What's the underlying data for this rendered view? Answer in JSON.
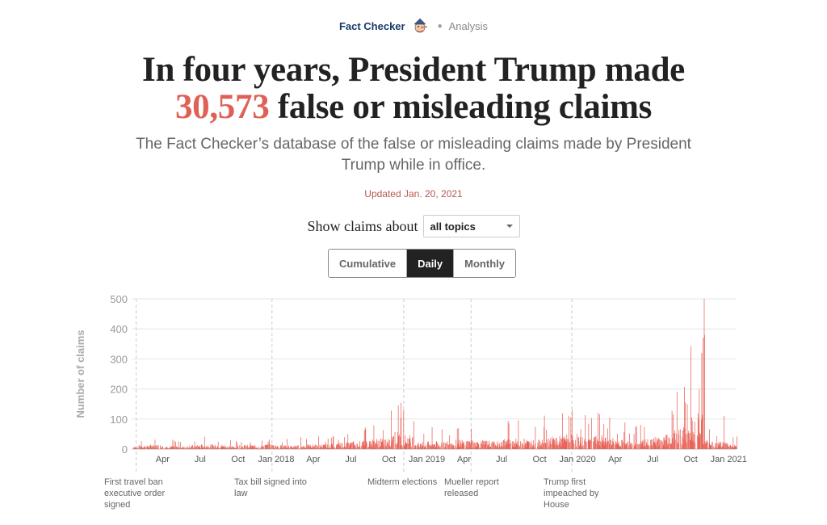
{
  "header": {
    "brand": "Fact Checker",
    "section": "Analysis"
  },
  "headline": {
    "line1": "In four years, President Trump made",
    "number": "30,573",
    "line2_rest": " false or misleading claims"
  },
  "dek": "The Fact Checker’s database of the false or misleading claims made by President Trump while in office.",
  "updated": "Updated Jan. 20, 2021",
  "filter": {
    "label": "Show claims about",
    "selected": "all topics"
  },
  "toggle": {
    "options": [
      "Cumulative",
      "Daily",
      "Monthly"
    ],
    "active": "Daily"
  },
  "colors": {
    "accent": "#e06055",
    "bar": "#e8645a",
    "headline": "#222222",
    "updated": "#b5594d"
  },
  "chart_data": {
    "type": "bar",
    "ylabel": "Number of claims",
    "ylim": [
      0,
      500
    ],
    "yticks": [
      0,
      100,
      200,
      300,
      400,
      500
    ],
    "x_start": "2017-01-20",
    "x_end": "2021-01-20",
    "xticks": [
      {
        "label": "Apr",
        "date": "2017-04-01"
      },
      {
        "label": "Jul",
        "date": "2017-07-01"
      },
      {
        "label": "Oct",
        "date": "2017-10-01"
      },
      {
        "label": "Jan 2018",
        "date": "2018-01-01"
      },
      {
        "label": "Apr",
        "date": "2018-04-01"
      },
      {
        "label": "Jul",
        "date": "2018-07-01"
      },
      {
        "label": "Oct",
        "date": "2018-10-01"
      },
      {
        "label": "Jan 2019",
        "date": "2019-01-01"
      },
      {
        "label": "Apr",
        "date": "2019-04-01"
      },
      {
        "label": "Jul",
        "date": "2019-07-01"
      },
      {
        "label": "Oct",
        "date": "2019-10-01"
      },
      {
        "label": "Jan 2020",
        "date": "2020-01-01"
      },
      {
        "label": "Apr",
        "date": "2020-04-01"
      },
      {
        "label": "Jul",
        "date": "2020-07-01"
      },
      {
        "label": "Oct",
        "date": "2020-10-01"
      },
      {
        "label": "Jan 2021",
        "date": "2021-01-01"
      }
    ],
    "annotations": [
      {
        "date": "2017-01-27",
        "label": "First travel ban executive order signed"
      },
      {
        "date": "2017-12-22",
        "label": "Tax bill signed into law"
      },
      {
        "date": "2018-11-06",
        "label": "Midterm elections"
      },
      {
        "date": "2019-04-18",
        "label": "Mueller report released"
      },
      {
        "date": "2019-12-18",
        "label": "Trump first impeached by House"
      }
    ],
    "monthly_levels": [
      {
        "month": "2017-01",
        "v": 10
      },
      {
        "month": "2017-02",
        "v": 12
      },
      {
        "month": "2017-03",
        "v": 14
      },
      {
        "month": "2017-04",
        "v": 11
      },
      {
        "month": "2017-05",
        "v": 10
      },
      {
        "month": "2017-06",
        "v": 13
      },
      {
        "month": "2017-07",
        "v": 15
      },
      {
        "month": "2017-08",
        "v": 14
      },
      {
        "month": "2017-09",
        "v": 11
      },
      {
        "month": "2017-10",
        "v": 14
      },
      {
        "month": "2017-11",
        "v": 13
      },
      {
        "month": "2017-12",
        "v": 16
      },
      {
        "month": "2018-01",
        "v": 13
      },
      {
        "month": "2018-02",
        "v": 12
      },
      {
        "month": "2018-03",
        "v": 15
      },
      {
        "month": "2018-04",
        "v": 15
      },
      {
        "month": "2018-05",
        "v": 18
      },
      {
        "month": "2018-06",
        "v": 22
      },
      {
        "month": "2018-07",
        "v": 26
      },
      {
        "month": "2018-08",
        "v": 32
      },
      {
        "month": "2018-09",
        "v": 34
      },
      {
        "month": "2018-10",
        "v": 55
      },
      {
        "month": "2018-11",
        "v": 45
      },
      {
        "month": "2018-12",
        "v": 22
      },
      {
        "month": "2019-01",
        "v": 25
      },
      {
        "month": "2019-02",
        "v": 28
      },
      {
        "month": "2019-03",
        "v": 30
      },
      {
        "month": "2019-04",
        "v": 30
      },
      {
        "month": "2019-05",
        "v": 28
      },
      {
        "month": "2019-06",
        "v": 25
      },
      {
        "month": "2019-07",
        "v": 33
      },
      {
        "month": "2019-08",
        "v": 34
      },
      {
        "month": "2019-09",
        "v": 30
      },
      {
        "month": "2019-10",
        "v": 40
      },
      {
        "month": "2019-11",
        "v": 42
      },
      {
        "month": "2019-12",
        "v": 48
      },
      {
        "month": "2020-01",
        "v": 40
      },
      {
        "month": "2020-02",
        "v": 44
      },
      {
        "month": "2020-03",
        "v": 38
      },
      {
        "month": "2020-04",
        "v": 30
      },
      {
        "month": "2020-05",
        "v": 26
      },
      {
        "month": "2020-06",
        "v": 32
      },
      {
        "month": "2020-07",
        "v": 40
      },
      {
        "month": "2020-08",
        "v": 60
      },
      {
        "month": "2020-09",
        "v": 70
      },
      {
        "month": "2020-10",
        "v": 120
      },
      {
        "month": "2020-11",
        "v": 30
      },
      {
        "month": "2020-12",
        "v": 25
      },
      {
        "month": "2021-01",
        "v": 15
      }
    ],
    "peaks": [
      {
        "date": "2018-11-05",
        "v": 130
      },
      {
        "date": "2018-10-29",
        "v": 105
      },
      {
        "date": "2019-12-10",
        "v": 110
      },
      {
        "date": "2020-08-28",
        "v": 190
      },
      {
        "date": "2020-09-22",
        "v": 150
      },
      {
        "date": "2020-10-21",
        "v": 200
      },
      {
        "date": "2020-10-27",
        "v": 320
      },
      {
        "date": "2020-10-30",
        "v": 370
      },
      {
        "date": "2020-11-02",
        "v": 503
      },
      {
        "date": "2020-11-03",
        "v": 380
      },
      {
        "date": "2020-12-20",
        "v": 110
      }
    ]
  }
}
